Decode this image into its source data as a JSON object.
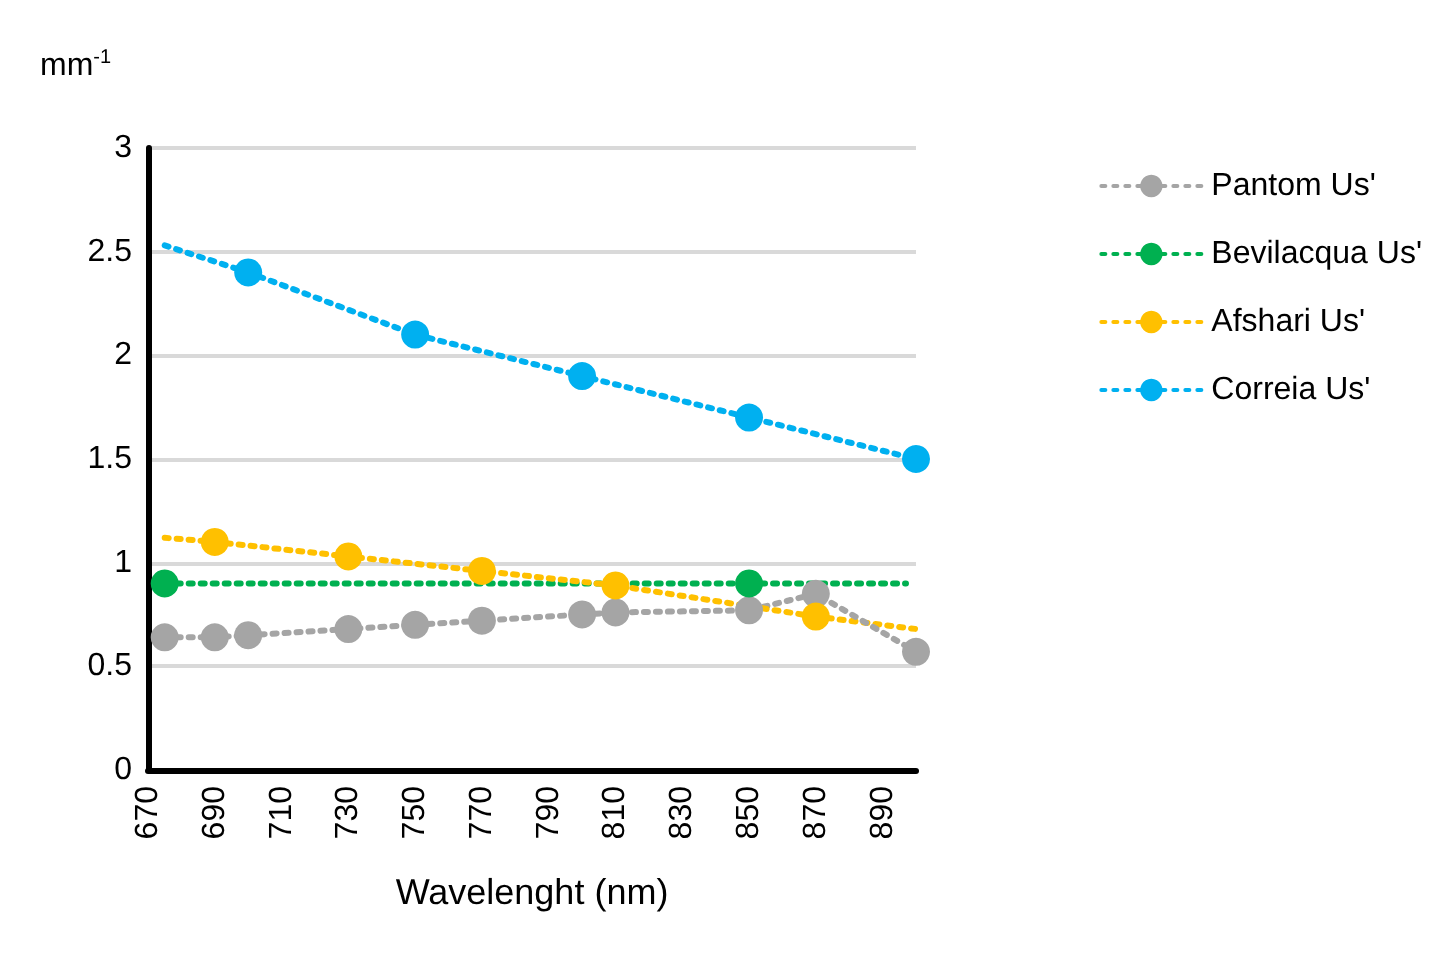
{
  "chart_data": {
    "type": "line",
    "xlabel": "Wavelenght (nm)",
    "ylabel": "mm$^{-1}$",
    "xlim": [
      670,
      900
    ],
    "xticks": [
      670,
      690,
      710,
      730,
      750,
      770,
      790,
      810,
      830,
      850,
      870,
      890
    ],
    "ylim": [
      0,
      3
    ],
    "yticks": [
      0,
      0.5,
      1,
      1.5,
      2,
      2.5,
      3
    ],
    "grid": "y",
    "legend": "right",
    "line_style": "dotted",
    "series": [
      {
        "name": "Pantom Us'",
        "color": "#a5a5a5",
        "marker": "circle",
        "x": [
          675,
          690,
          700,
          730,
          750,
          770,
          800,
          810,
          850,
          870,
          900
        ],
        "values": [
          0.64,
          0.64,
          0.65,
          0.68,
          0.7,
          0.72,
          0.75,
          0.76,
          0.77,
          0.85,
          0.57
        ]
      },
      {
        "name": "Bevilacqua Us'",
        "color": "#00b050",
        "marker": "circle",
        "x": [
          675,
          850
        ],
        "values": [
          0.9,
          0.9
        ]
      },
      {
        "color": "#00b050",
        "marker": "none",
        "x": [
          850,
          897
        ],
        "values": [
          0.9,
          0.9
        ]
      },
      {
        "name": "Afshari Us'",
        "color": "#ffc000",
        "marker": "circle",
        "x": [
          690,
          730,
          770,
          810,
          870
        ],
        "values": [
          1.1,
          1.03,
          0.96,
          0.89,
          0.74
        ]
      },
      {
        "color": "#ffc000",
        "marker": "none",
        "x": [
          675,
          690
        ],
        "values": [
          1.12,
          1.1
        ]
      },
      {
        "color": "#ffc000",
        "marker": "none",
        "x": [
          870,
          900
        ],
        "values": [
          0.74,
          0.68
        ]
      },
      {
        "name": "Correia Us'",
        "color": "#00b0f0",
        "marker": "circle",
        "x": [
          700,
          750,
          800,
          850,
          900
        ],
        "values": [
          2.4,
          2.1,
          1.9,
          1.7,
          1.5
        ]
      },
      {
        "color": "#00b0f0",
        "marker": "none",
        "x": [
          675,
          700
        ],
        "values": [
          2.53,
          2.4
        ]
      }
    ]
  }
}
